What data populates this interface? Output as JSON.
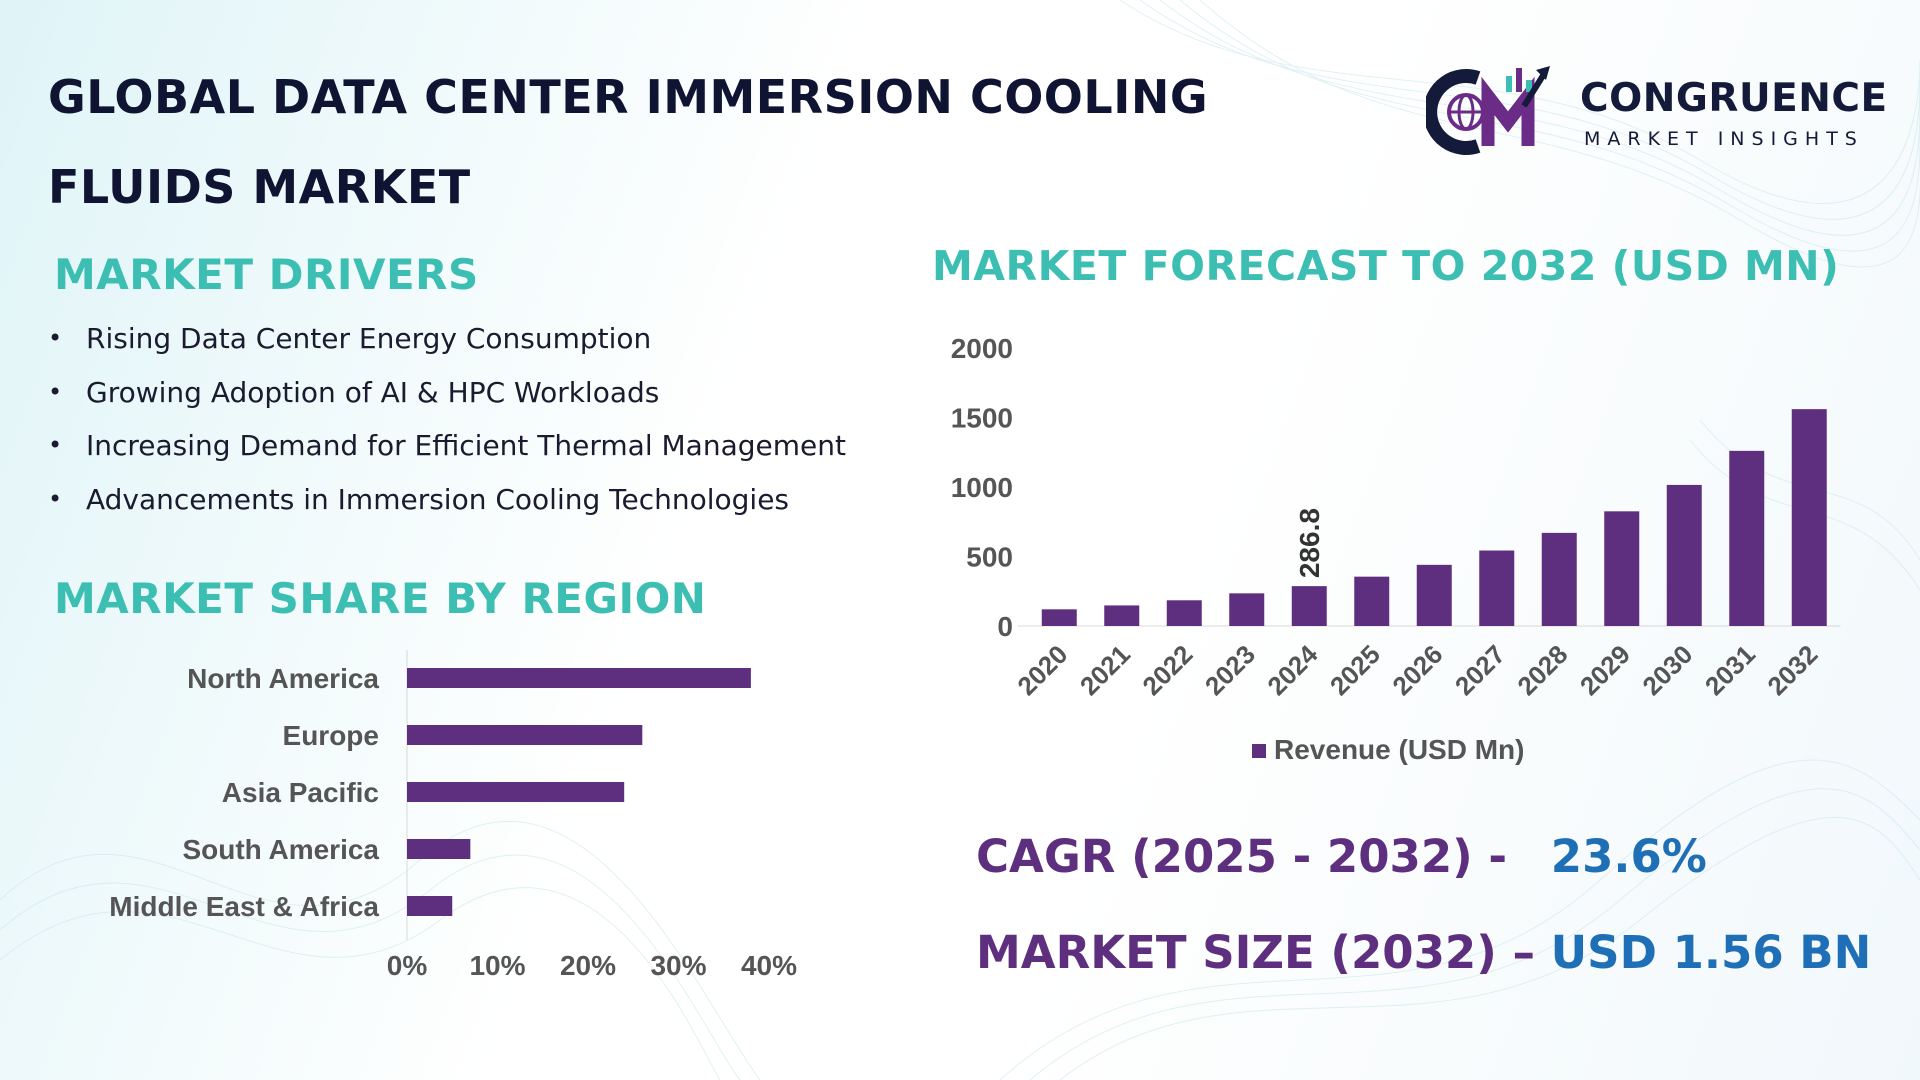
{
  "header": {
    "title_line1": "GLOBAL DATA CENTER IMMERSION COOLING",
    "title_line2": "FLUIDS MARKET"
  },
  "logo": {
    "name": "CONGRUENCE",
    "tagline": "MARKET INSIGHTS"
  },
  "drivers": {
    "heading": "MARKET DRIVERS",
    "items": [
      "Rising Data Center Energy Consumption",
      "Growing Adoption of AI & HPC Workloads",
      "Increasing Demand for Efficient Thermal Management",
      "Advancements in Immersion Cooling Technologies"
    ]
  },
  "region": {
    "heading": "MARKET SHARE BY REGION"
  },
  "forecast": {
    "heading": "MARKET FORECAST TO 2032 (USD MN)"
  },
  "stats": {
    "cagr_label": "CAGR (2025 - 2032) -",
    "cagr_value": "23.6%",
    "size_label": "MARKET SIZE (2032) –",
    "size_value": "USD 1.56 BN"
  },
  "colors": {
    "bar": "#5e2f7e",
    "accent": "#3cbfb2",
    "title": "#101433",
    "value_blue": "#1f6fb6",
    "axis_text": "#555555"
  },
  "chart_data": [
    {
      "type": "bar",
      "orientation": "horizontal",
      "title": "MARKET SHARE BY REGION",
      "categories": [
        "North America",
        "Europe",
        "Asia Pacific",
        "South America",
        "Middle East & Africa"
      ],
      "values": [
        38,
        26,
        24,
        7,
        5
      ],
      "xlim": [
        0,
        40
      ],
      "xticks": [
        "0%",
        "10%",
        "20%",
        "30%",
        "40%"
      ],
      "grid": false
    },
    {
      "type": "bar",
      "orientation": "vertical",
      "title": "MARKET FORECAST TO 2032 (USD MN)",
      "categories": [
        "2020",
        "2021",
        "2022",
        "2023",
        "2024",
        "2025",
        "2026",
        "2027",
        "2028",
        "2029",
        "2030",
        "2031",
        "2032"
      ],
      "series": [
        {
          "name": "Revenue (USD Mn)",
          "values": [
            120,
            148,
            185,
            235,
            286.8,
            355,
            440,
            543,
            670,
            825,
            1015,
            1260,
            1560
          ]
        }
      ],
      "data_labels": [
        {
          "category": "2024",
          "text": "286.8"
        }
      ],
      "ylim": [
        0,
        2000
      ],
      "yticks": [
        "0",
        "500",
        "1000",
        "1500",
        "2000"
      ],
      "legend": "bottom",
      "grid": false
    }
  ]
}
